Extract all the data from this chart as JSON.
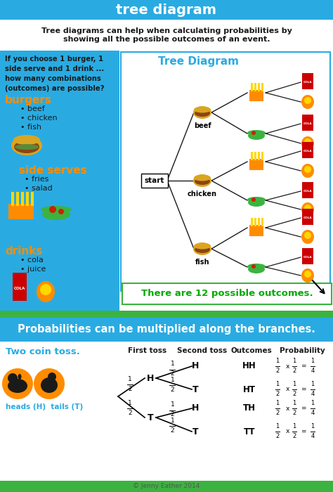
{
  "title": "tree diagram",
  "title_bg": "#29ABE2",
  "title_color": "white",
  "subtitle": "Tree diagrams can help when calculating probabilities by\nshowing all the possible outcomes of an event.",
  "subtitle_color": "#1a1a1a",
  "left_section_bg": "#29ABE2",
  "tree_title": "Tree Diagram",
  "tree_title_color": "#29ABE2",
  "left_question": "If you choose 1 burger, 1\nside serve and 1 drink ...\nhow many combinations\n(outcomes) are possible?",
  "left_question_color": "#1a1a1a",
  "burgers_label": "burgers",
  "burgers_color": "#FF8C00",
  "burgers_items": [
    "• beef",
    "• chicken",
    "• fish"
  ],
  "side_serves_label": "side serves",
  "side_serves_color": "#FF8C00",
  "side_serves_items": [
    "• fries",
    "• salad"
  ],
  "drinks_label": "drinks",
  "drinks_color": "#FF8C00",
  "drinks_items": [
    "• cola",
    "• juice"
  ],
  "items_color": "#1a1a1a",
  "outcome_text": "There are 12 possible outcomes.",
  "outcome_color": "#00AA00",
  "bottom_banner_text": "Probabilities can be multiplied along the branches.",
  "bottom_banner_bg": "#29ABE2",
  "bottom_banner_color": "white",
  "coin_section_title": "Two coin toss.",
  "coin_section_color": "#29ABE2",
  "coin_labels": "heads (H)  tails (T)",
  "coin_labels_color": "#29ABE2",
  "first_toss_label": "First toss",
  "second_toss_label": "Second toss",
  "outcomes_label": "Outcomes",
  "probability_label": "Probability",
  "col_labels_color": "#1a1a1a",
  "tree_line_color": "#1a1a1a",
  "green_grass_color": "#3CB340",
  "footer_text": "© Jenny Eather 2014",
  "footer_color": "#555555"
}
